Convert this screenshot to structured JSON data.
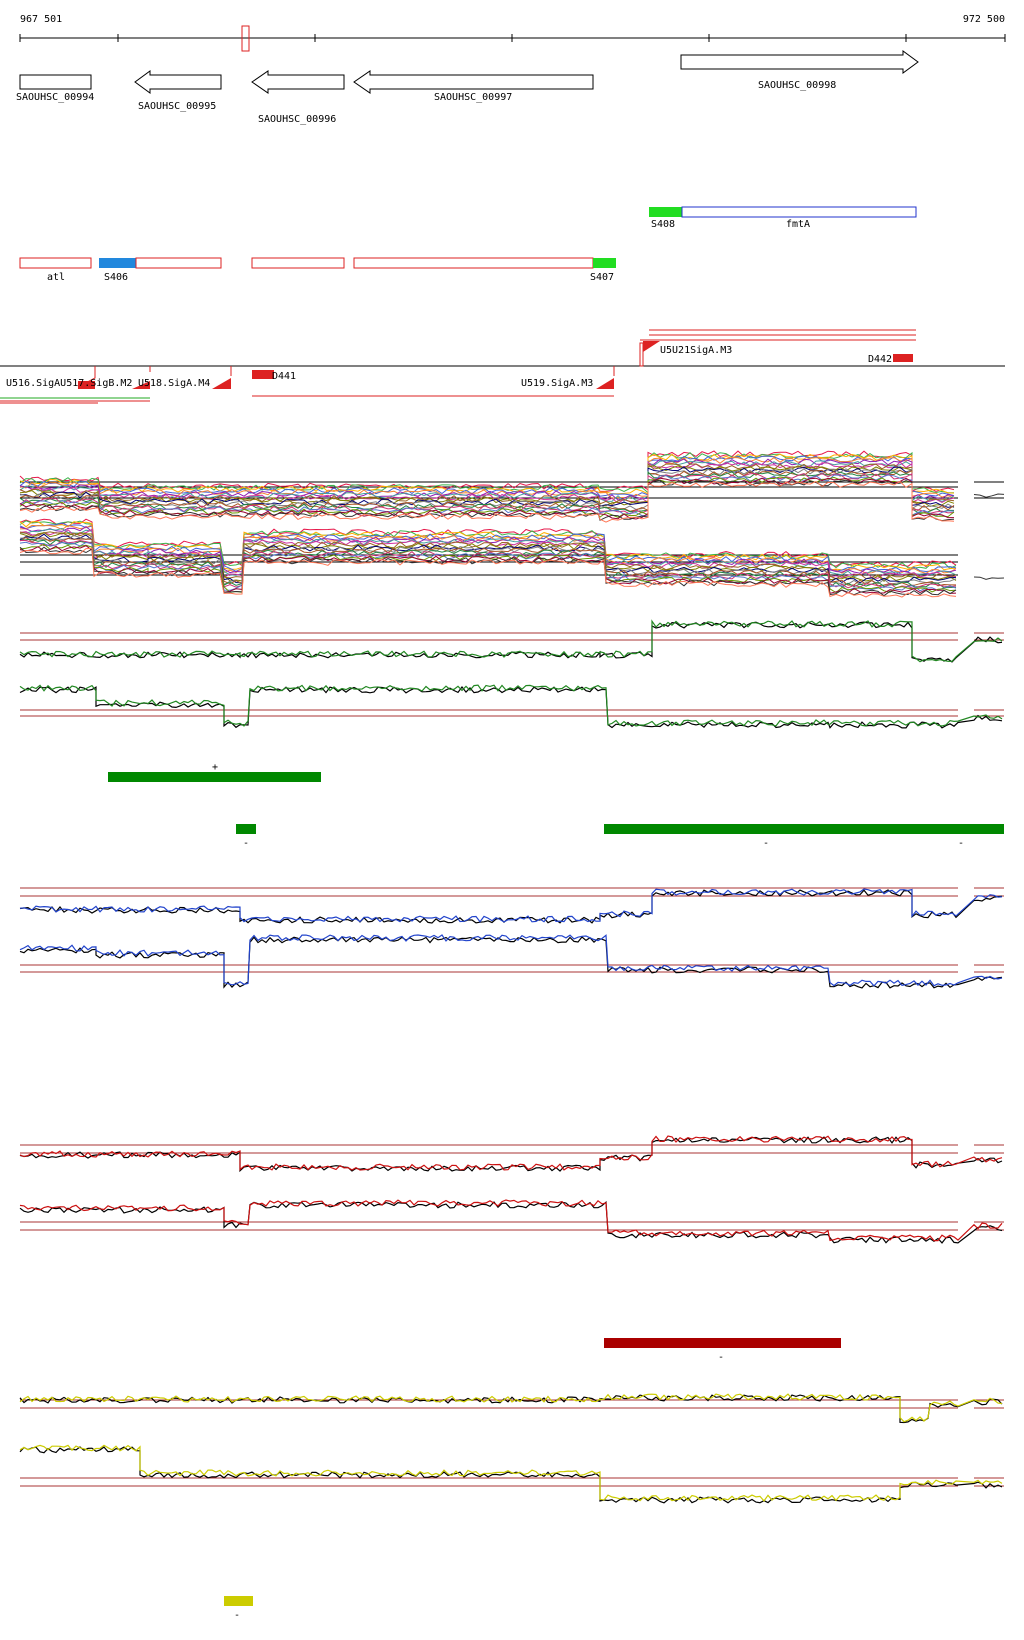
{
  "ruler": {
    "start_label": "967 501",
    "end_label": "972 500"
  },
  "genes": [
    {
      "label": "SAOUHSC_00994",
      "direction": "none"
    },
    {
      "label": "SAOUHSC_00995",
      "direction": "left"
    },
    {
      "label": "SAOUHSC_00996",
      "direction": "left"
    },
    {
      "label": "SAOUHSC_00997",
      "direction": "left"
    },
    {
      "label": "SAOUHSC_00998",
      "direction": "right"
    }
  ],
  "features": {
    "fmtA": "fmtA",
    "S408": "S408",
    "atl": "atl",
    "S406": "S406",
    "S407": "S407"
  },
  "promoters": {
    "U516": "U516.SigAU517.SigB.M2",
    "U518": "U518.SigA.M4",
    "D441": "D441",
    "U519": "U519.SigA.M3",
    "U520": "U5U21SigA.M3",
    "D442": "D442"
  },
  "segment_marks": {
    "green_plus": "+",
    "green_minus_a": "-",
    "green_minus_b": "-",
    "green_minus_c": "-",
    "red_minus": "-",
    "yellow_minus": "-"
  },
  "colors": {
    "gene_outline": "#000000",
    "feature_red": "#dd2222",
    "feature_blue": "#2233cc",
    "feature_cyan": "#2288dd",
    "feature_green": "#22dd22",
    "segment_green": "#008800",
    "segment_red": "#aa0000",
    "segment_yellow": "#cccc00",
    "track_blue": "#2244cc",
    "track_red": "#cc1111",
    "track_green": "#228822",
    "threshold": "#aa3333"
  }
}
